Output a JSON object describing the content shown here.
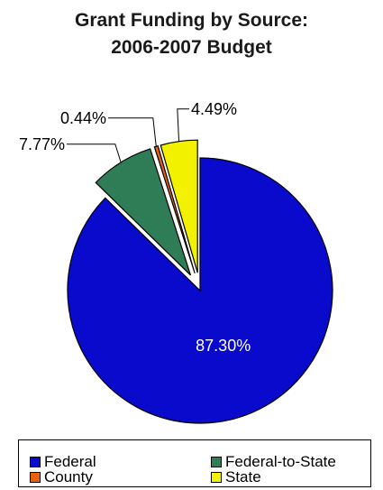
{
  "chart_data": {
    "type": "pie",
    "title_line1": "Grant Funding by Source:",
    "title_line2": "2006-2007 Budget",
    "slices": [
      {
        "name": "Federal",
        "value": 87.3,
        "label": "87.30%",
        "color": "#0a0acc",
        "exploded": false
      },
      {
        "name": "Federal-to-State",
        "value": 7.77,
        "label": "7.77%",
        "color": "#2e7d57",
        "exploded": true
      },
      {
        "name": "County",
        "value": 0.44,
        "label": "0.44%",
        "color": "#e8620c",
        "exploded": true
      },
      {
        "name": "State",
        "value": 4.49,
        "label": "4.49%",
        "color": "#f2f200",
        "exploded": true
      }
    ],
    "legend_placement": "bottom"
  }
}
